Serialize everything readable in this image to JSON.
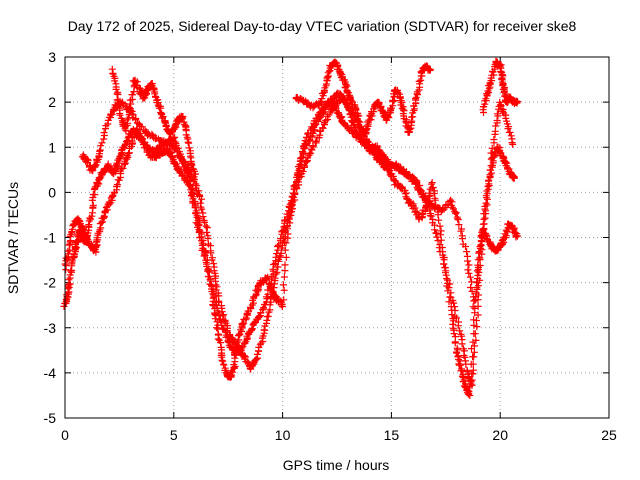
{
  "chart_data": {
    "type": "scatter",
    "title": "Day 172 of 2025, Sidereal Day-to-day VTEC variation (SDTVAR) for receiver ske8",
    "xlabel": "GPS time / hours",
    "ylabel": "SDTVAR / TECUs",
    "xlim": [
      0,
      25
    ],
    "ylim": [
      -5,
      3
    ],
    "xticks": [
      "0",
      "5",
      "10",
      "15",
      "20",
      "25"
    ],
    "yticks": [
      "-5",
      "-4",
      "-3",
      "-2",
      "-1",
      "0",
      "1",
      "2",
      "3"
    ],
    "grid": true,
    "marker": "plus",
    "color": "#ff0000",
    "series": [
      {
        "values_description": "approximate traced tracks of SDTVAR vs time",
        "tracks": [
          {
            "x": [
              0.0,
              0.1,
              0.2,
              0.35,
              0.5,
              0.6,
              0.7,
              0.8,
              0.9,
              1.0,
              1.2,
              1.4,
              1.6,
              1.8,
              2.0,
              2.2,
              2.4,
              2.6,
              2.8,
              3.0,
              3.3,
              3.6,
              3.9,
              4.2,
              4.5,
              4.8,
              5.0,
              5.2,
              5.5,
              5.8,
              6.0,
              6.2,
              6.5,
              6.8,
              7.0,
              7.2,
              7.4,
              7.6,
              7.8,
              8.0,
              8.2,
              8.5,
              8.8,
              9.0,
              9.3,
              9.6,
              9.8,
              10.0,
              10.2,
              10.5,
              10.8,
              11.0,
              11.3,
              11.6,
              12.0,
              12.3,
              12.6,
              12.9,
              13.2,
              13.5,
              13.8,
              14.0,
              14.3,
              14.6,
              14.9,
              15.2,
              15.5,
              15.8,
              16.0,
              16.3,
              16.6,
              16.9,
              17.2,
              17.5,
              17.8,
              18.0,
              18.2,
              18.4,
              18.6,
              18.8,
              19.0,
              19.2,
              19.4,
              19.6,
              19.8,
              20.0,
              20.2,
              20.4,
              20.6,
              20.8
            ],
            "y": [
              -2.5,
              -2.3,
              -2.0,
              -1.5,
              -1.2,
              -1.0,
              -0.8,
              -1.0,
              -1.1,
              -1.0,
              -0.5,
              0.1,
              0.3,
              0.5,
              0.6,
              0.4,
              0.6,
              0.9,
              1.1,
              1.3,
              1.4,
              1.1,
              0.8,
              0.8,
              0.9,
              0.9,
              0.7,
              0.5,
              0.3,
              0.1,
              -0.3,
              -0.8,
              -1.5,
              -2.4,
              -3.0,
              -3.6,
              -4.0,
              -4.1,
              -3.8,
              -3.2,
              -2.9,
              -2.6,
              -2.2,
              -2.0,
              -1.9,
              -2.3,
              -2.4,
              -2.5,
              -1.0,
              0.0,
              0.6,
              1.0,
              1.2,
              1.6,
              1.9,
              2.1,
              2.2,
              2.0,
              1.8,
              1.5,
              1.2,
              1.0,
              0.8,
              0.6,
              0.5,
              0.2,
              0.1,
              -0.2,
              -0.3,
              -0.6,
              -0.3,
              0.2,
              -0.6,
              -1.8,
              -2.8,
              -3.5,
              -3.9,
              -4.3,
              -4.5,
              -2.8,
              -1.5,
              -0.8,
              -1.0,
              -1.2,
              -1.3,
              -1.2,
              -1.0,
              -0.7,
              -0.8,
              -1.0
            ]
          },
          {
            "x": [
              0.0,
              0.2,
              0.4,
              0.6,
              0.8,
              1.0,
              1.2,
              1.4,
              1.5,
              1.7,
              2.0,
              2.3,
              2.6,
              2.9,
              3.2,
              3.5,
              3.8,
              4.1,
              4.4,
              4.7,
              5.0,
              5.3,
              5.6,
              5.9,
              6.2,
              6.5,
              6.8,
              7.0,
              7.3,
              7.6,
              7.9,
              8.2,
              8.5,
              8.8,
              9.1,
              9.4,
              9.7,
              10.0,
              10.3,
              10.6,
              11.0,
              11.4,
              11.8,
              12.2,
              12.5,
              12.8,
              13.1,
              13.4,
              13.7,
              14.0,
              14.3,
              14.6,
              15.0,
              15.4,
              15.8,
              16.2,
              16.6,
              17.0,
              17.4,
              17.8,
              18.2,
              18.5,
              18.7,
              18.9,
              19.1,
              19.3,
              19.5,
              19.7,
              19.9,
              20.1,
              20.3,
              20.5,
              20.7
            ],
            "y": [
              -1.7,
              -1.2,
              -0.7,
              -0.6,
              -0.8,
              -1.0,
              -1.2,
              -1.3,
              -1.0,
              -0.6,
              -0.3,
              0.0,
              0.5,
              0.8,
              1.3,
              1.2,
              1.0,
              0.9,
              1.0,
              1.1,
              1.2,
              0.8,
              0.6,
              0.3,
              -0.1,
              -0.8,
              -1.6,
              -2.2,
              -2.8,
              -3.2,
              -3.4,
              -3.6,
              -3.9,
              -3.7,
              -3.2,
              -2.6,
              -1.8,
              -1.2,
              -0.6,
              0.0,
              0.6,
              1.0,
              1.4,
              1.8,
              2.0,
              2.1,
              1.7,
              1.3,
              1.1,
              1.0,
              1.0,
              0.8,
              0.6,
              0.5,
              0.4,
              0.2,
              -0.2,
              -0.8,
              -1.5,
              -2.4,
              -3.2,
              -4.0,
              -4.3,
              -3.0,
              -1.5,
              -0.5,
              0.3,
              0.8,
              1.0,
              0.8,
              0.6,
              0.4,
              0.3
            ]
          },
          {
            "x": [
              0.8,
              1.0,
              1.2,
              1.4,
              1.6,
              2.0,
              2.3,
              2.6,
              3.0,
              3.4,
              3.8,
              4.2,
              4.6,
              5.0,
              5.4,
              5.7,
              6.0,
              6.3,
              6.6,
              6.9,
              7.2,
              7.5,
              7.8,
              8.1,
              8.4,
              8.7,
              9.0,
              9.3,
              9.6,
              9.9,
              10.2,
              10.5,
              10.8,
              11.1,
              11.5,
              11.9,
              12.3,
              12.6,
              12.9,
              13.3,
              13.7,
              14.1,
              14.5,
              14.9,
              15.3,
              15.7,
              16.1,
              16.5,
              16.9,
              17.3,
              17.7,
              18.1,
              18.5,
              18.8,
              19.1,
              19.4,
              19.7,
              20.0,
              20.3,
              20.6
            ],
            "y": [
              0.8,
              0.7,
              0.5,
              0.6,
              0.9,
              1.6,
              1.9,
              2.0,
              1.8,
              1.5,
              1.3,
              1.2,
              1.1,
              1.0,
              0.7,
              0.3,
              -0.5,
              -1.2,
              -1.8,
              -2.4,
              -2.9,
              -3.3,
              -3.6,
              -3.5,
              -3.2,
              -2.9,
              -2.7,
              -2.3,
              -1.7,
              -1.0,
              -0.5,
              0.0,
              0.6,
              1.2,
              1.6,
              1.9,
              2.0,
              1.7,
              1.5,
              1.3,
              1.1,
              0.9,
              0.8,
              0.6,
              0.6,
              0.4,
              0.2,
              -0.1,
              -0.3,
              -0.4,
              -0.2,
              -0.6,
              -1.5,
              -2.5,
              -1.2,
              0.0,
              1.2,
              2.0,
              1.6,
              1.0
            ]
          },
          {
            "x": [
              2.2,
              2.4,
              2.6,
              2.8,
              3.0,
              3.2,
              3.4,
              3.6,
              3.8,
              4.0,
              4.2,
              4.4,
              4.6,
              4.8,
              5.0,
              5.2,
              5.4,
              5.6,
              5.8,
              6.0
            ],
            "y": [
              2.7,
              2.2,
              1.6,
              1.4,
              1.9,
              2.5,
              2.3,
              2.1,
              2.3,
              2.4,
              2.1,
              1.8,
              1.5,
              1.3,
              1.4,
              1.6,
              1.7,
              1.3,
              0.7,
              0.3
            ]
          },
          {
            "x": [
              10.6,
              11.0,
              11.4,
              11.8,
              12.0,
              12.2,
              12.4,
              12.6,
              12.8,
              13.0,
              13.2,
              13.4,
              13.6,
              13.8,
              14.0,
              14.2,
              14.4,
              14.6,
              14.8,
              15.0,
              15.2,
              15.4,
              15.6,
              15.8,
              16.0,
              16.2,
              16.4,
              16.6,
              16.8
            ],
            "y": [
              2.1,
              2.0,
              1.9,
              2.0,
              2.4,
              2.8,
              2.9,
              2.7,
              2.5,
              2.2,
              2.0,
              1.8,
              1.4,
              1.3,
              1.6,
              1.9,
              2.0,
              1.8,
              1.6,
              1.9,
              2.3,
              2.1,
              1.7,
              1.3,
              1.8,
              2.2,
              2.7,
              2.8,
              2.7
            ]
          },
          {
            "x": [
              19.2,
              19.4,
              19.6,
              19.8,
              20.0,
              20.1,
              20.2,
              20.3,
              20.4,
              20.6,
              20.8
            ],
            "y": [
              1.8,
              2.2,
              2.5,
              2.9,
              2.8,
              2.5,
              2.2,
              2.0,
              2.1,
              2.0,
              2.0
            ]
          }
        ]
      }
    ]
  }
}
